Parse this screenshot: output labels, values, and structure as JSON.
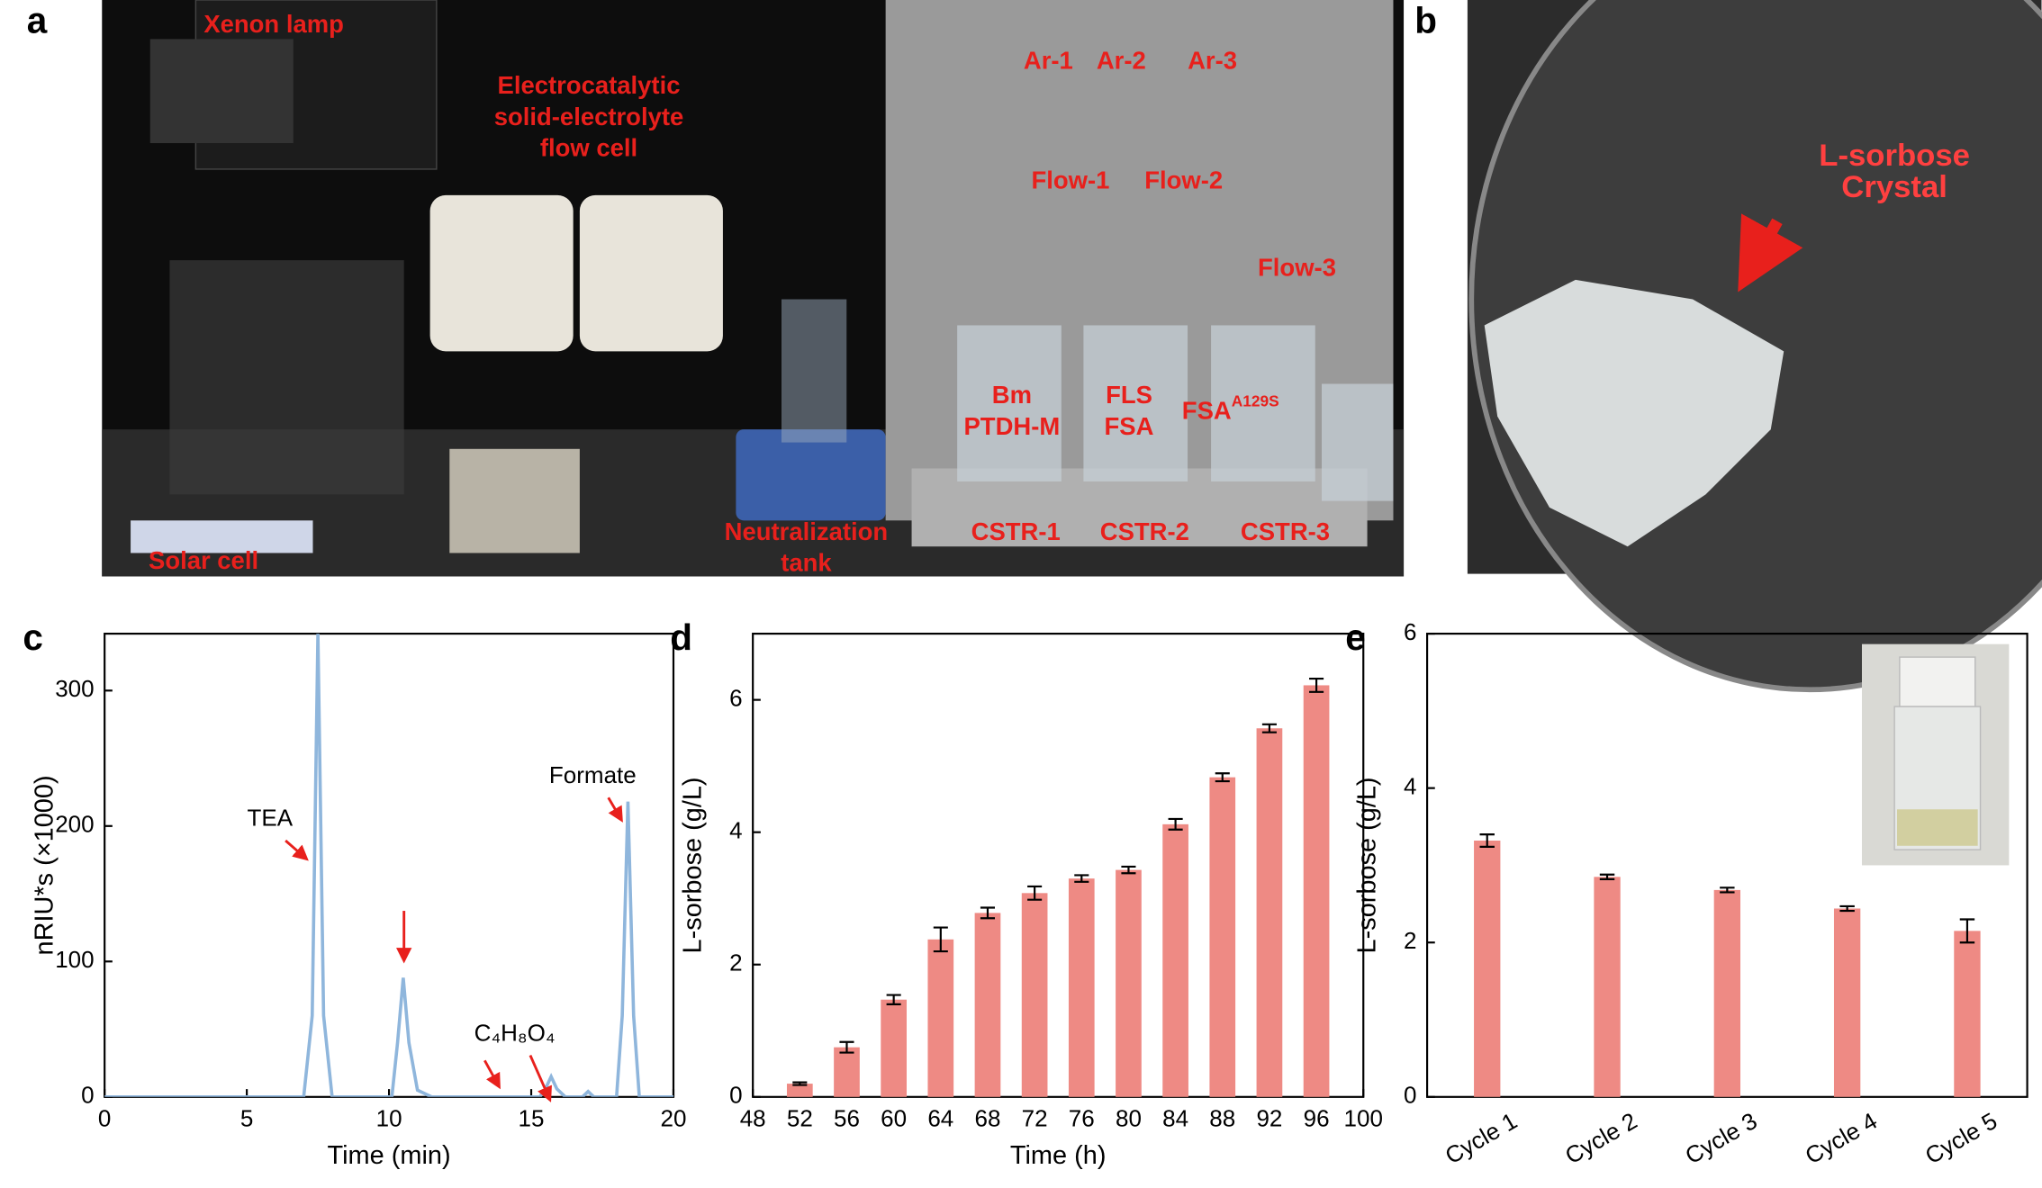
{
  "photos": {
    "a": {
      "panel": "a",
      "labels": [
        [
          "Xenon lamp"
        ],
        [
          "Electrocatalytic",
          "solid-electrolyte",
          "flow cell"
        ],
        [
          "Ar-1"
        ],
        [
          "Ar-2"
        ],
        [
          "Ar-3"
        ],
        [
          "Flow-1"
        ],
        [
          "Flow-2"
        ],
        [
          "Flow-3"
        ],
        [
          "Bm",
          "PTDH-M"
        ],
        [
          "FLS",
          "FSA"
        ],
        [
          "FSA",
          "A129S"
        ],
        [
          "Neutralization",
          "tank"
        ],
        [
          "Solar cell"
        ],
        [
          "CSTR-1"
        ],
        [
          "CSTR-2"
        ],
        [
          "CSTR-3"
        ]
      ]
    },
    "b": {
      "panel": "b",
      "labels": [
        [
          "L-sorbose",
          "Crystal"
        ]
      ]
    }
  },
  "chart_data": [
    {
      "type": "line",
      "panel": "c",
      "x_label": "Time (min)",
      "y_label": "nRIU*s (×1000)",
      "color": "#8fb6dc",
      "x": [
        0,
        7.0,
        7.3,
        7.5,
        7.7,
        8.0,
        10.1,
        10.3,
        10.5,
        10.7,
        11.0,
        11.5,
        15.3,
        15.5,
        15.7,
        15.9,
        16.2,
        16.8,
        17.0,
        17.2,
        18.0,
        18.2,
        18.4,
        18.6,
        18.8,
        20
      ],
      "values": [
        0,
        0,
        60,
        342,
        60,
        0,
        0,
        40,
        88,
        40,
        5,
        0,
        0,
        6,
        15,
        6,
        0,
        0,
        4,
        0,
        0,
        60,
        218,
        60,
        0,
        0
      ],
      "xlim": [
        0,
        20
      ],
      "xticks": [
        0,
        5,
        10,
        15,
        20
      ],
      "ylim": [
        0,
        342
      ],
      "yticks": [
        0,
        100,
        200,
        300
      ],
      "annotations": [
        "TEA",
        "Formate",
        "C₄H₈O₄"
      ]
    },
    {
      "type": "bar",
      "panel": "d",
      "x_label": "Time (h)",
      "y_label": "L-sorbose (g/L)",
      "color": "#ee8a84",
      "x": [
        52,
        56,
        60,
        64,
        68,
        72,
        76,
        80,
        84,
        88,
        92,
        96
      ],
      "values": [
        0.2,
        0.75,
        1.47,
        2.38,
        2.78,
        3.08,
        3.3,
        3.43,
        4.12,
        4.83,
        5.57,
        6.22
      ],
      "errors": [
        0.02,
        0.08,
        0.07,
        0.18,
        0.08,
        0.1,
        0.05,
        0.05,
        0.08,
        0.06,
        0.06,
        0.1
      ],
      "xlim": [
        48,
        100
      ],
      "xticks": [
        48,
        52,
        56,
        60,
        64,
        68,
        72,
        76,
        80,
        84,
        88,
        92,
        96,
        100
      ],
      "ylim": [
        0,
        7
      ],
      "yticks": [
        0,
        2,
        4,
        6
      ]
    },
    {
      "type": "bar",
      "panel": "e",
      "y_label": "L-sorbose (g/L)",
      "color": "#ee8a84",
      "categories": [
        "Cycle 1",
        "Cycle 2",
        "Cycle 3",
        "Cycle 4",
        "Cycle 5"
      ],
      "values": [
        3.32,
        2.85,
        2.68,
        2.44,
        2.15
      ],
      "errors": [
        0.08,
        0.03,
        0.03,
        0.03,
        0.15
      ],
      "ylim": [
        0,
        6
      ],
      "yticks": [
        0,
        2,
        4,
        6
      ]
    }
  ]
}
